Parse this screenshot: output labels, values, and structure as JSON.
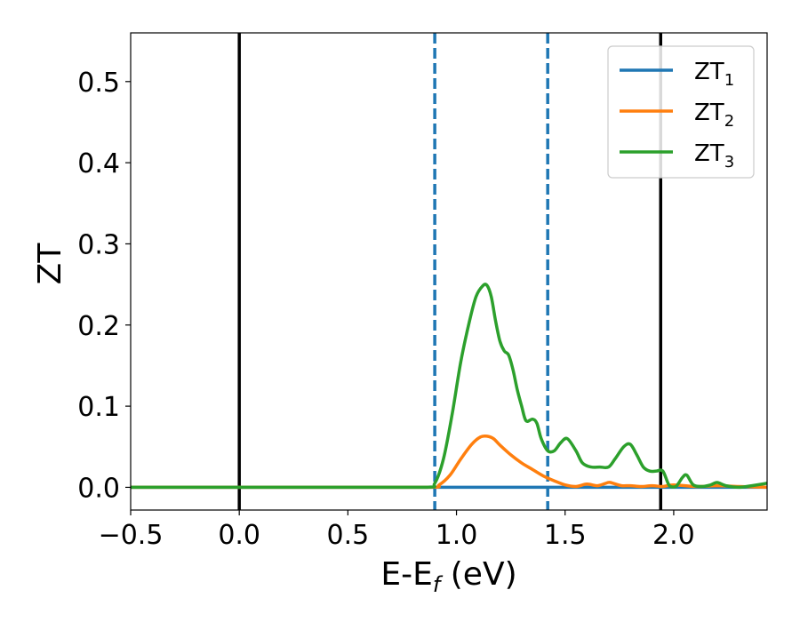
{
  "chart_data": {
    "type": "line",
    "xlabel_main": "E-E",
    "xlabel_sub": "f",
    "xlabel_unit": " (eV)",
    "ylabel": "ZT",
    "xlim": [
      -0.5,
      2.43
    ],
    "ylim": [
      -0.028,
      0.56
    ],
    "grid": false,
    "legend_position": "top-right",
    "x_ticks": [
      -0.5,
      0.0,
      0.5,
      1.0,
      1.5,
      2.0
    ],
    "x_tick_labels": [
      "−0.5",
      "0.0",
      "0.5",
      "1.0",
      "1.5",
      "2.0"
    ],
    "y_ticks": [
      0.0,
      0.1,
      0.2,
      0.3,
      0.4,
      0.5
    ],
    "y_tick_labels": [
      "0.0",
      "0.1",
      "0.2",
      "0.3",
      "0.4",
      "0.5"
    ],
    "vertical_lines": [
      {
        "x": 0.0,
        "style": "solid",
        "color": "#000000"
      },
      {
        "x": 1.94,
        "style": "solid",
        "color": "#000000"
      },
      {
        "x": 0.9,
        "style": "dashed",
        "color": "#1f77b4"
      },
      {
        "x": 1.42,
        "style": "dashed",
        "color": "#1f77b4"
      }
    ],
    "series": [
      {
        "name": "ZT",
        "subscript": "1",
        "color": "#1f77b4",
        "x": [
          -0.5,
          0.0,
          0.5,
          0.9,
          1.5,
          2.0,
          2.43
        ],
        "y": [
          0.0,
          0.0,
          0.0,
          0.0,
          0.0,
          0.0,
          0.0
        ]
      },
      {
        "name": "ZT",
        "subscript": "2",
        "color": "#ff7f0e",
        "x": [
          -0.5,
          0.0,
          0.5,
          0.88,
          0.92,
          0.97,
          1.02,
          1.07,
          1.11,
          1.14,
          1.17,
          1.2,
          1.25,
          1.3,
          1.35,
          1.4,
          1.45,
          1.5,
          1.55,
          1.6,
          1.65,
          1.7,
          1.72,
          1.76,
          1.8,
          1.85,
          1.9,
          1.95,
          2.0,
          2.1,
          2.2,
          2.3,
          2.43
        ],
        "y": [
          0.0,
          0.0,
          0.0,
          0.0,
          0.003,
          0.015,
          0.035,
          0.053,
          0.062,
          0.063,
          0.06,
          0.052,
          0.04,
          0.03,
          0.022,
          0.014,
          0.008,
          0.003,
          0.001,
          0.004,
          0.002,
          0.006,
          0.005,
          0.002,
          0.002,
          0.001,
          0.002,
          0.001,
          0.003,
          0.001,
          0.002,
          0.001,
          0.0
        ]
      },
      {
        "name": "ZT",
        "subscript": "3",
        "color": "#2ca02c",
        "x": [
          -0.5,
          0.0,
          0.5,
          0.86,
          0.9,
          0.94,
          0.98,
          1.02,
          1.06,
          1.09,
          1.12,
          1.14,
          1.16,
          1.18,
          1.2,
          1.22,
          1.24,
          1.26,
          1.28,
          1.3,
          1.32,
          1.35,
          1.37,
          1.39,
          1.42,
          1.45,
          1.48,
          1.51,
          1.55,
          1.58,
          1.62,
          1.66,
          1.7,
          1.73,
          1.77,
          1.8,
          1.83,
          1.86,
          1.89,
          1.92,
          1.95,
          1.98,
          2.01,
          2.04,
          2.06,
          2.09,
          2.13,
          2.17,
          2.2,
          2.24,
          2.3,
          2.36,
          2.43
        ],
        "y": [
          0.0,
          0.0,
          0.0,
          0.0,
          0.005,
          0.035,
          0.09,
          0.155,
          0.205,
          0.235,
          0.248,
          0.249,
          0.235,
          0.205,
          0.18,
          0.168,
          0.163,
          0.145,
          0.12,
          0.1,
          0.082,
          0.084,
          0.079,
          0.06,
          0.045,
          0.045,
          0.055,
          0.06,
          0.045,
          0.03,
          0.025,
          0.025,
          0.025,
          0.035,
          0.05,
          0.053,
          0.04,
          0.025,
          0.02,
          0.02,
          0.02,
          0.002,
          0.001,
          0.012,
          0.015,
          0.003,
          0.001,
          0.003,
          0.006,
          0.002,
          0.0,
          0.002,
          0.005
        ]
      }
    ]
  }
}
